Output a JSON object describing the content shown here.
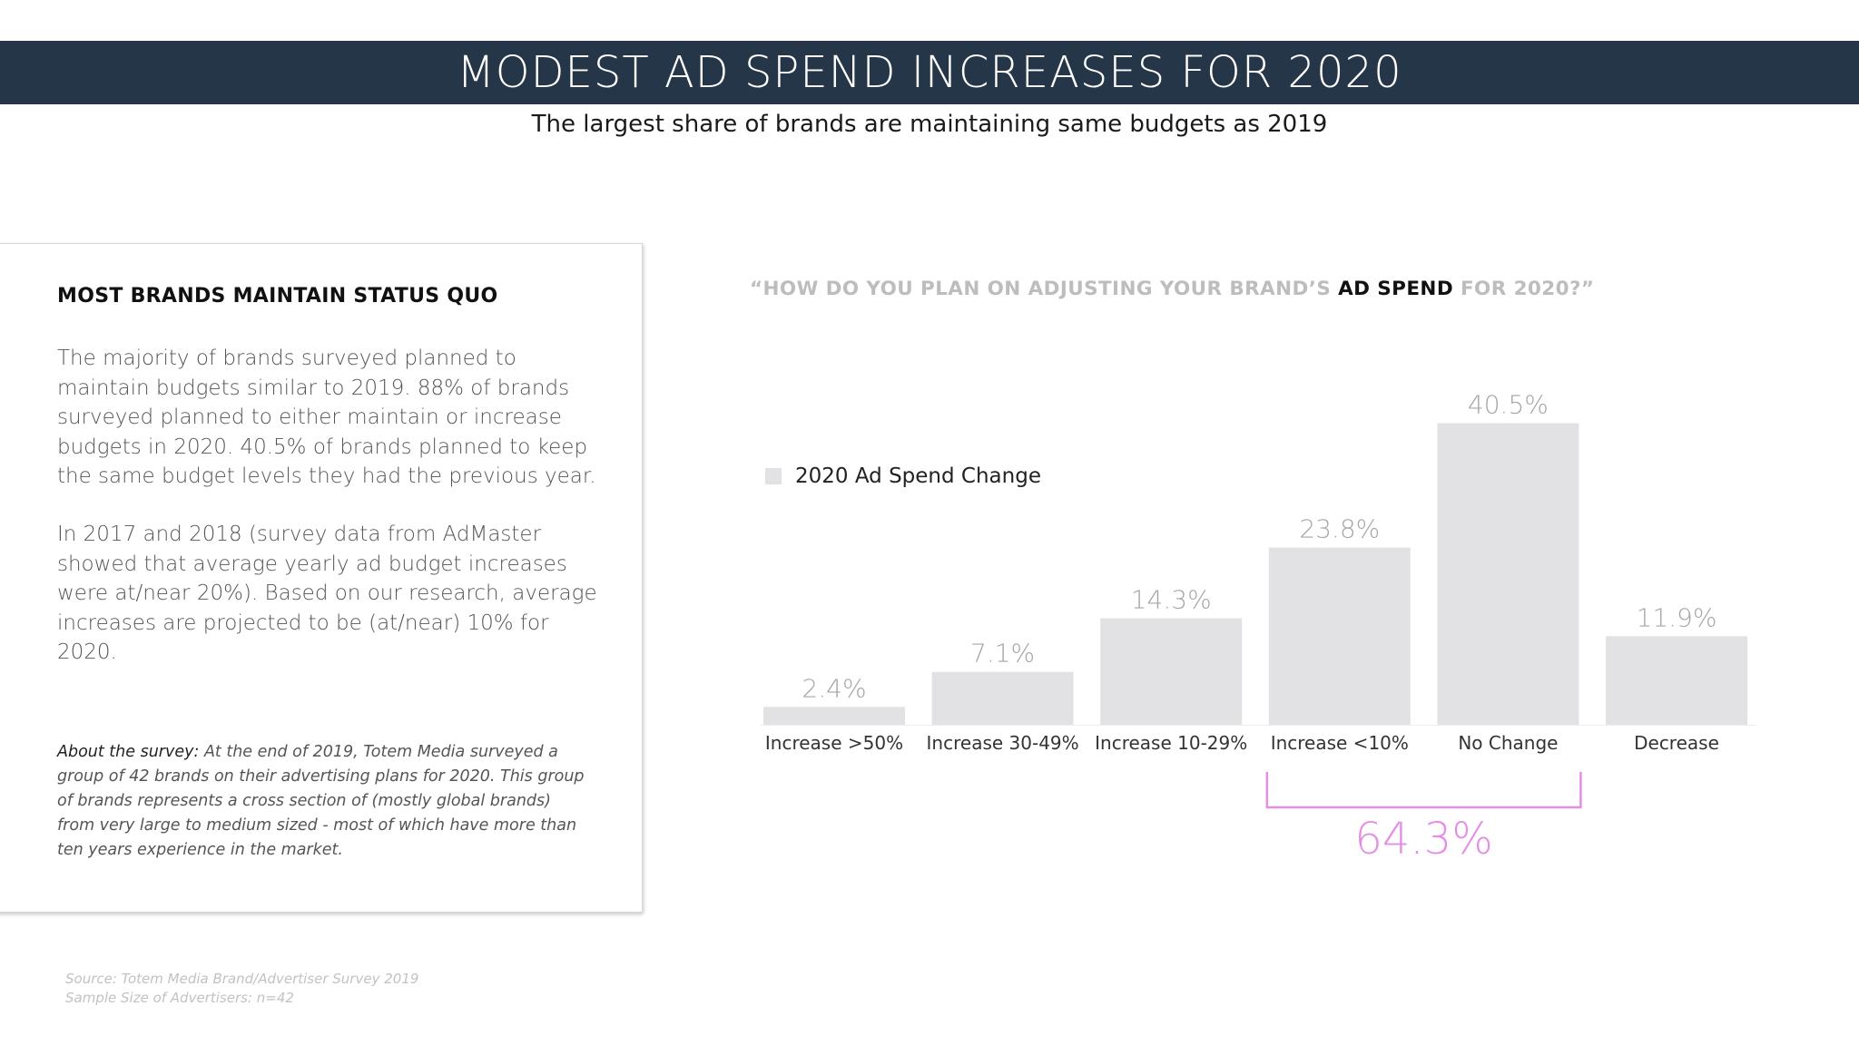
{
  "header": {
    "title": "MODEST AD SPEND INCREASES FOR 2020",
    "subtitle": "The largest share of brands are maintaining same budgets as 2019",
    "bar_color": "#253649"
  },
  "panel": {
    "heading": "MOST BRANDS MAINTAIN STATUS QUO",
    "paragraph1": "The majority of brands surveyed planned to maintain budgets similar to 2019. 88% of brands surveyed planned to either maintain or increase budgets in 2020. 40.5% of brands planned to keep the same budget levels they had the previous year.",
    "paragraph2": "In 2017 and 2018 (survey data from AdMaster showed that average yearly ad budget increases were at/near 20%). Based on our research, average increases are projected to be (at/near) 10% for 2020.",
    "about_lead": "About the survey:",
    "about_text": " At the end of 2019, Totem Media surveyed a group of 42 brands on their advertising plans for 2020. This group of brands represents a cross section of (mostly global brands) from very large to medium sized - most of which have more than ten years experience in the market."
  },
  "footnotes": {
    "source": "Source: Totem Media Brand/Advertiser Survey 2019",
    "sample": "Sample Size of Advertisers: n=42"
  },
  "question": {
    "before": "“HOW DO YOU PLAN ON ADJUSTING YOUR BRAND’S ",
    "highlight": "AD SPEND",
    "after": " FOR 2020?”"
  },
  "chart_data": {
    "type": "bar",
    "categories": [
      "Increase >50%",
      "Increase 30-49%",
      "Increase 10-29%",
      "Increase <10%",
      "No Change",
      "Decrease"
    ],
    "series": [
      {
        "name": "2020 Ad Spend Change",
        "values": [
          2.4,
          7.1,
          14.3,
          23.8,
          40.5,
          11.9
        ]
      }
    ],
    "data_labels": [
      "2.4%",
      "7.1%",
      "14.3%",
      "23.8%",
      "40.5%",
      "11.9%"
    ],
    "bar_color": "#e2e2e4",
    "label_color": "#a6a6a6",
    "legend_position": "left",
    "grid": false,
    "annotation": {
      "text": "64.3%",
      "spans": [
        "Increase <10%",
        "No Change"
      ],
      "color": "#e58ee5"
    }
  }
}
